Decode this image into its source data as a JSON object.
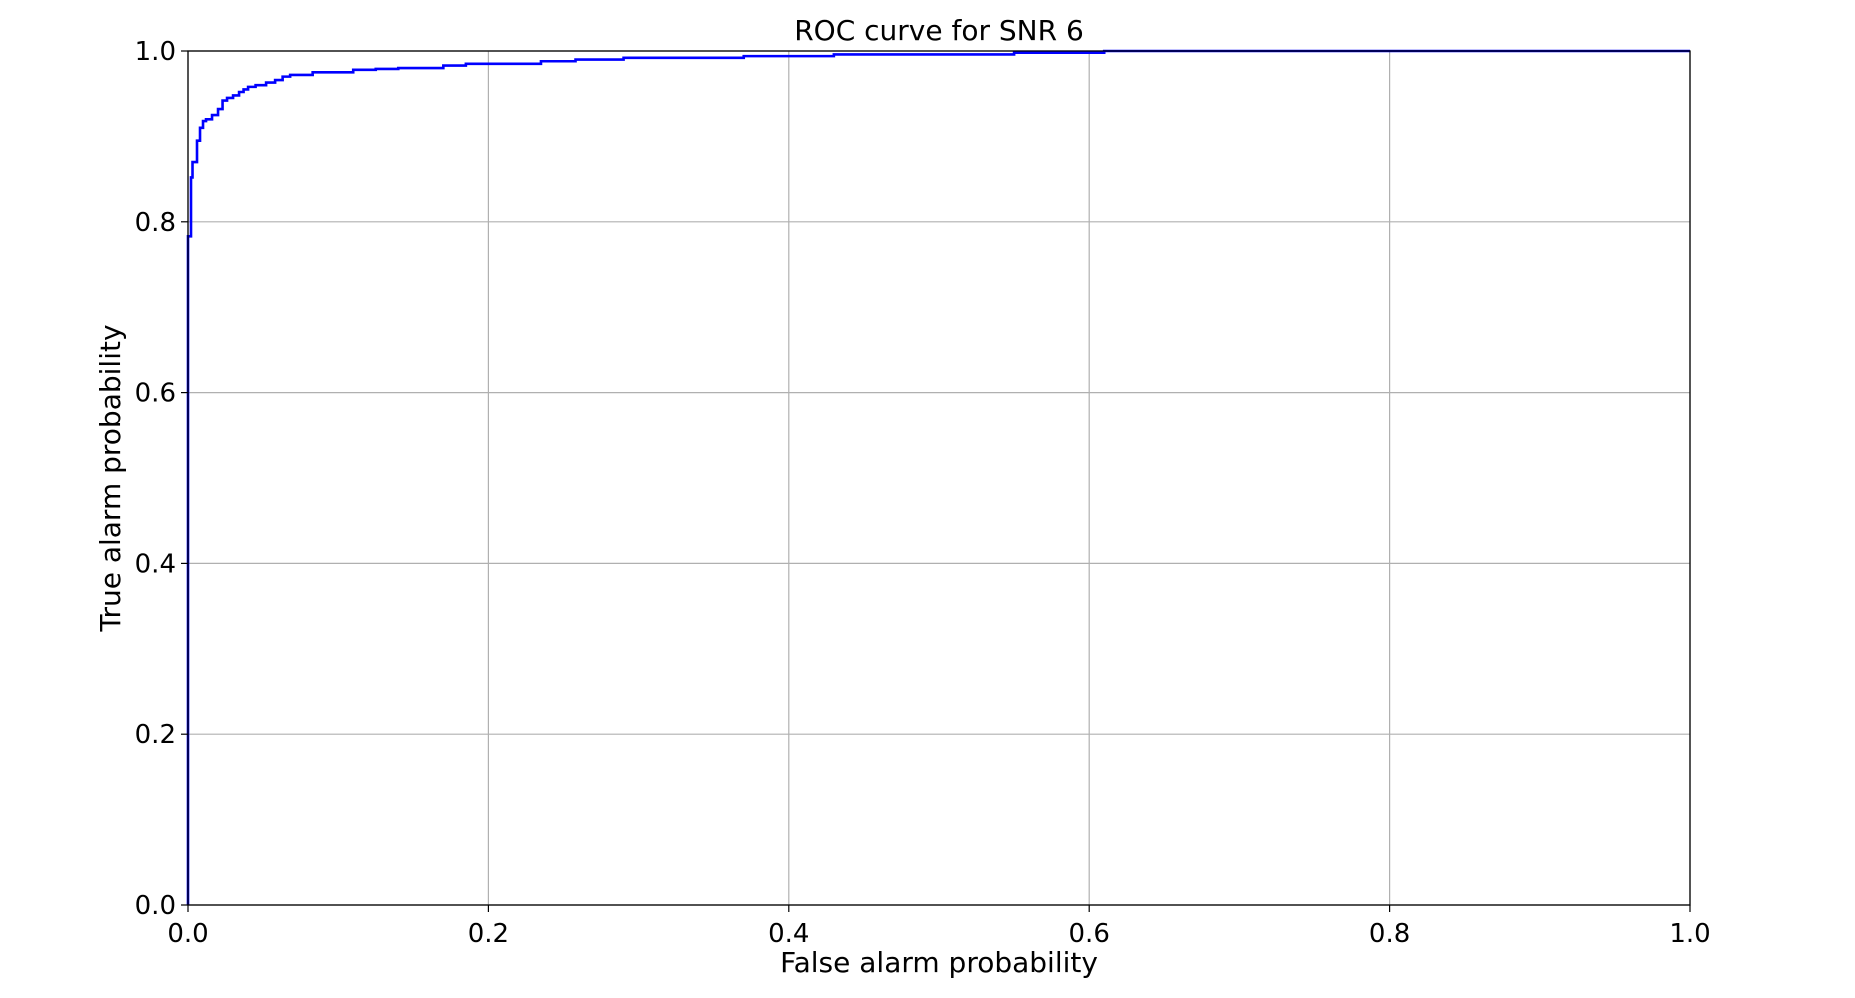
{
  "chart_data": {
    "type": "line",
    "title": "ROC curve for SNR 6",
    "xlabel": "False alarm probability",
    "ylabel": "True alarm probability",
    "xlim": [
      0.0,
      1.0
    ],
    "ylim": [
      0.0,
      1.0
    ],
    "xticks": [
      0.0,
      0.2,
      0.4,
      0.6,
      0.8,
      1.0
    ],
    "yticks": [
      0.0,
      0.2,
      0.4,
      0.6,
      0.8,
      1.0
    ],
    "xtick_labels": [
      "0.0",
      "0.2",
      "0.4",
      "0.6",
      "0.8",
      "1.0"
    ],
    "ytick_labels": [
      "0.0",
      "0.2",
      "0.4",
      "0.6",
      "0.8",
      "1.0"
    ],
    "grid": true,
    "legend": "none",
    "series": [
      {
        "color": "#0000ff",
        "step": true,
        "x": [
          0.0,
          0.0,
          0.002,
          0.002,
          0.003,
          0.003,
          0.006,
          0.006,
          0.008,
          0.008,
          0.01,
          0.01,
          0.012,
          0.012,
          0.016,
          0.016,
          0.02,
          0.02,
          0.023,
          0.023,
          0.026,
          0.026,
          0.03,
          0.03,
          0.034,
          0.034,
          0.037,
          0.037,
          0.04,
          0.04,
          0.045,
          0.045,
          0.052,
          0.052,
          0.058,
          0.058,
          0.063,
          0.063,
          0.068,
          0.068,
          0.083,
          0.083,
          0.11,
          0.11,
          0.125,
          0.125,
          0.14,
          0.14,
          0.17,
          0.17,
          0.185,
          0.185,
          0.235,
          0.235,
          0.258,
          0.258,
          0.29,
          0.29,
          0.37,
          0.37,
          0.43,
          0.43,
          0.55,
          0.55,
          0.61,
          0.61,
          0.985,
          1.0
        ],
        "y": [
          0.0,
          0.783,
          0.783,
          0.852,
          0.852,
          0.87,
          0.87,
          0.895,
          0.895,
          0.91,
          0.91,
          0.918,
          0.918,
          0.92,
          0.92,
          0.925,
          0.925,
          0.932,
          0.932,
          0.942,
          0.942,
          0.945,
          0.945,
          0.948,
          0.948,
          0.952,
          0.952,
          0.955,
          0.955,
          0.958,
          0.958,
          0.96,
          0.96,
          0.963,
          0.963,
          0.966,
          0.966,
          0.97,
          0.97,
          0.972,
          0.972,
          0.975,
          0.975,
          0.978,
          0.978,
          0.979,
          0.979,
          0.98,
          0.98,
          0.983,
          0.983,
          0.985,
          0.985,
          0.988,
          0.988,
          0.99,
          0.99,
          0.992,
          0.992,
          0.994,
          0.994,
          0.996,
          0.996,
          0.998,
          0.998,
          1.0,
          1.0,
          1.0
        ]
      }
    ]
  }
}
